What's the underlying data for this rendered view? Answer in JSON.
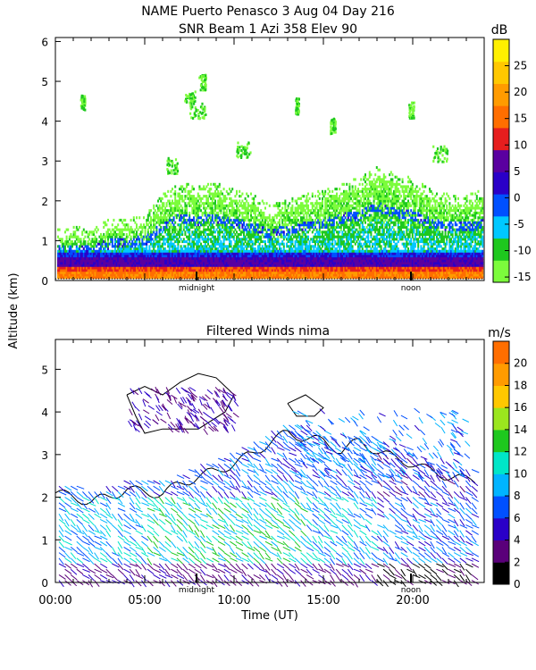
{
  "chart_data": [
    {
      "type": "heatmap",
      "title": "NAME Puerto Penasco    3 Aug 04 Day 216",
      "subtitle": "SNR Beam 1 Azi 358 Elev 90",
      "ylabel": "Altitude (km)",
      "ylim": [
        0,
        6.1
      ],
      "xlim": [
        0,
        24
      ],
      "yticks": [
        "0",
        "1",
        "2",
        "3",
        "4",
        "5",
        "6"
      ],
      "x_markers": [
        {
          "label": "midnight",
          "x": 7.9
        },
        {
          "label": "noon",
          "x": 19.9
        }
      ],
      "colorbar": {
        "unit": "dB",
        "range": [
          -16,
          30
        ],
        "tick_labels": [
          "-15",
          "-10",
          "-5",
          "0",
          "5",
          "10",
          "15",
          "20",
          "25"
        ],
        "colors": [
          "#7cfc3c",
          "#1ec81e",
          "#00c8ff",
          "#0050ff",
          "#2a00c8",
          "#5a00a0",
          "#e61e1e",
          "#ff6e00",
          "#ff9b00",
          "#ffc800",
          "#fff000"
        ]
      },
      "cloud_top_profile": [
        [
          0,
          1.0
        ],
        [
          1,
          1.1
        ],
        [
          2,
          1.0
        ],
        [
          3,
          1.3
        ],
        [
          4,
          1.3
        ],
        [
          5,
          1.4
        ],
        [
          6,
          1.9
        ],
        [
          7,
          2.2
        ],
        [
          8,
          2.1
        ],
        [
          9,
          2.2
        ],
        [
          10,
          2.0
        ],
        [
          11,
          1.9
        ],
        [
          12,
          1.6
        ],
        [
          13,
          1.8
        ],
        [
          14,
          1.9
        ],
        [
          15,
          2.0
        ],
        [
          16,
          2.2
        ],
        [
          17,
          2.3
        ],
        [
          18,
          2.6
        ],
        [
          19,
          2.4
        ],
        [
          20,
          2.3
        ],
        [
          21,
          2.0
        ],
        [
          22,
          1.9
        ],
        [
          23,
          1.9
        ],
        [
          24,
          2.0
        ]
      ]
    },
    {
      "type": "scatter",
      "title": "Filtered Winds nima",
      "xlabel": "Time (UT)",
      "ylabel": "Altitude (km)",
      "xlim": [
        0,
        24
      ],
      "ylim": [
        0,
        5.7
      ],
      "xticks": [
        "00:00",
        "05:00",
        "10:00",
        "15:00",
        "20:00"
      ],
      "yticks": [
        "0",
        "1",
        "2",
        "3",
        "4",
        "5"
      ],
      "x_markers": [
        {
          "label": "midnight",
          "x": 7.9
        },
        {
          "label": "noon",
          "x": 19.9
        }
      ],
      "colorbar": {
        "unit": "m/s",
        "range": [
          0,
          22
        ],
        "tick_labels": [
          "0",
          "2",
          "4",
          "6",
          "8",
          "10",
          "12",
          "14",
          "16",
          "18",
          "20"
        ],
        "colors": [
          "#000000",
          "#5a007a",
          "#2a00c8",
          "#0050ff",
          "#00b4ff",
          "#00e6c8",
          "#1ec81e",
          "#9be61e",
          "#ffc800",
          "#ff9b00",
          "#ff6e00"
        ]
      },
      "boundary_profile": [
        [
          0,
          2.1
        ],
        [
          1,
          2.0
        ],
        [
          2,
          1.9
        ],
        [
          3,
          2.0
        ],
        [
          4,
          2.2
        ],
        [
          5,
          2.1
        ],
        [
          6,
          2.1
        ],
        [
          7,
          2.3
        ],
        [
          8,
          2.5
        ],
        [
          9,
          2.6
        ],
        [
          10,
          2.8
        ],
        [
          11,
          3.0
        ],
        [
          12,
          3.3
        ],
        [
          13,
          3.5
        ],
        [
          14,
          3.4
        ],
        [
          15,
          3.3
        ],
        [
          16,
          3.1
        ],
        [
          17,
          3.3
        ],
        [
          18,
          3.1
        ],
        [
          19,
          2.9
        ],
        [
          20,
          2.8
        ],
        [
          21,
          2.6
        ],
        [
          22,
          2.5
        ],
        [
          23,
          2.4
        ]
      ]
    }
  ]
}
